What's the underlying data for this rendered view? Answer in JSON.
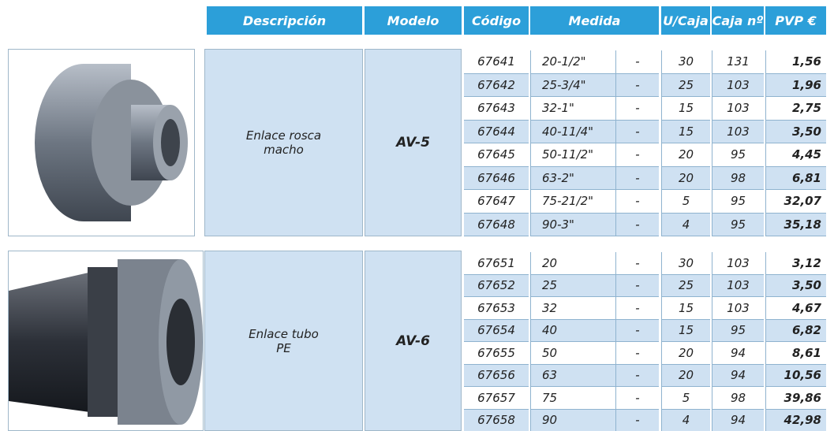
{
  "header": {
    "columns": [
      "Descripción",
      "Modelo",
      "Código",
      "Medida",
      "U/Caja",
      "Caja nº",
      "PVP €"
    ]
  },
  "sections": [
    {
      "description": "Enlace rosca macho",
      "model": "AV-5",
      "rows": [
        [
          "67641",
          "20-1/2\"",
          "-",
          "30",
          "131",
          "1,56"
        ],
        [
          "67642",
          "25-3/4\"",
          "-",
          "25",
          "103",
          "1,96"
        ],
        [
          "67643",
          "32-1\"",
          "-",
          "15",
          "103",
          "2,75"
        ],
        [
          "67644",
          "40-11/4\"",
          "-",
          "15",
          "103",
          "3,50"
        ],
        [
          "67645",
          "50-11/2\"",
          "-",
          "20",
          "95",
          "4,45"
        ],
        [
          "67646",
          "63-2\"",
          "-",
          "20",
          "98",
          "6,81"
        ],
        [
          "67647",
          "75-21/2\"",
          "-",
          "5",
          "95",
          "32,07"
        ],
        [
          "67648",
          "90-3\"",
          "-",
          "4",
          "95",
          "35,18"
        ]
      ]
    },
    {
      "description": "Enlace tubo PE",
      "model": "AV-6",
      "rows": [
        [
          "67651",
          "20",
          "-",
          "30",
          "103",
          "3,12"
        ],
        [
          "67652",
          "25",
          "-",
          "25",
          "103",
          "3,50"
        ],
        [
          "67653",
          "32",
          "-",
          "15",
          "103",
          "4,67"
        ],
        [
          "67654",
          "40",
          "-",
          "15",
          "95",
          "6,82"
        ],
        [
          "67655",
          "50",
          "-",
          "20",
          "94",
          "8,61"
        ],
        [
          "67656",
          "63",
          "-",
          "20",
          "94",
          "10,56"
        ],
        [
          "67657",
          "75",
          "-",
          "5",
          "98",
          "39,86"
        ],
        [
          "67658",
          "90",
          "-",
          "4",
          "94",
          "42,98"
        ]
      ]
    }
  ]
}
